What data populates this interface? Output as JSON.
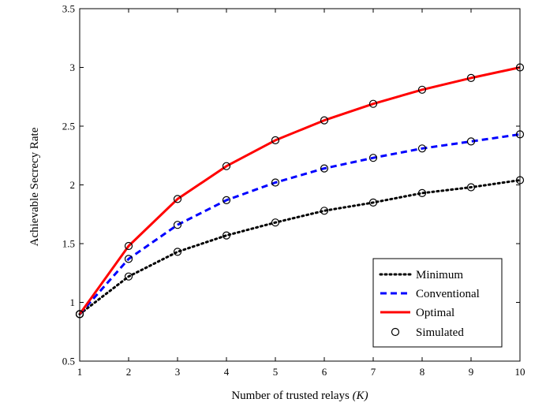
{
  "chart_data": {
    "type": "line",
    "title": "",
    "xlabel": "Number of trusted relays",
    "xlabel_symbol": "(K)",
    "ylabel": "Achievable Secrecy Rate",
    "x": [
      1,
      2,
      3,
      4,
      5,
      6,
      7,
      8,
      9,
      10
    ],
    "xlim": [
      1,
      10
    ],
    "ylim": [
      0.5,
      3.5
    ],
    "x_ticks": [
      "1",
      "2",
      "3",
      "4",
      "5",
      "6",
      "7",
      "8",
      "9",
      "10"
    ],
    "y_ticks": [
      "0.5",
      "1",
      "1.5",
      "2",
      "2.5",
      "3",
      "3.5"
    ],
    "grid": false,
    "legend_position": "bottom-right",
    "series": [
      {
        "name": "Minimum",
        "style": "dotted",
        "color": "#000000",
        "values": [
          0.9,
          1.22,
          1.43,
          1.57,
          1.68,
          1.78,
          1.85,
          1.93,
          1.98,
          2.04
        ]
      },
      {
        "name": "Conventional",
        "style": "dashed",
        "color": "#0000ff",
        "values": [
          0.9,
          1.37,
          1.66,
          1.87,
          2.02,
          2.14,
          2.23,
          2.31,
          2.37,
          2.43
        ]
      },
      {
        "name": "Optimal",
        "style": "solid",
        "color": "#ff0000",
        "values": [
          0.9,
          1.48,
          1.88,
          2.16,
          2.38,
          2.55,
          2.69,
          2.81,
          2.91,
          3.0
        ]
      },
      {
        "name": "Simulated",
        "style": "marker",
        "color": "#000000",
        "marker": "circle",
        "markers_on": [
          "Minimum",
          "Conventional",
          "Optimal"
        ]
      }
    ]
  }
}
